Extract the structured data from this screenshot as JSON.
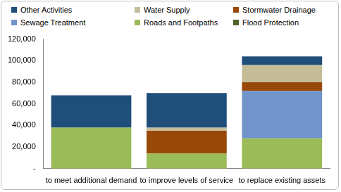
{
  "chart_data": {
    "type": "bar",
    "stacked": true,
    "grid": false,
    "legend": "top",
    "categories": [
      "to meet additional demand",
      "to improve levels of service",
      "to replace existing assets"
    ],
    "series": [
      {
        "name": "Other Activities",
        "color": "#1f4e79",
        "values": [
          30000,
          32000,
          8000
        ]
      },
      {
        "name": "Water Supply",
        "color": "#c4bd97",
        "values": [
          0,
          3000,
          16000
        ]
      },
      {
        "name": "Stormwater Drainage",
        "color": "#984807",
        "values": [
          0,
          21000,
          8000
        ]
      },
      {
        "name": "Sewage Treatment",
        "color": "#7394cb",
        "values": [
          0,
          0,
          44000
        ]
      },
      {
        "name": "Roads and Footpaths",
        "color": "#9bbb59",
        "values": [
          38000,
          14000,
          28000
        ]
      },
      {
        "name": "Flood Protection",
        "color": "#4f6228",
        "values": [
          0,
          0,
          0
        ]
      }
    ],
    "ylim": [
      0,
      120000
    ],
    "yticks": [
      {
        "value": 0,
        "label": "-"
      },
      {
        "value": 20000,
        "label": "20,000"
      },
      {
        "value": 40000,
        "label": "40,000"
      },
      {
        "value": 60000,
        "label": "60,000"
      },
      {
        "value": 80000,
        "label": "80,000"
      },
      {
        "value": 100000,
        "label": "100,000"
      },
      {
        "value": 120000,
        "label": "120,000"
      }
    ]
  }
}
